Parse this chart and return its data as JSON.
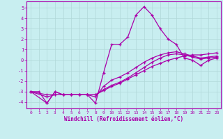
{
  "xlabel": "Windchill (Refroidissement éolien,°C)",
  "background_color": "#c8eef0",
  "grid_color": "#b0d8d8",
  "line_color": "#aa00aa",
  "xlim": [
    -0.5,
    23.5
  ],
  "ylim": [
    -4.6,
    5.6
  ],
  "xticks": [
    0,
    1,
    2,
    3,
    4,
    5,
    6,
    7,
    8,
    9,
    10,
    11,
    12,
    13,
    14,
    15,
    16,
    17,
    18,
    19,
    20,
    21,
    22,
    23
  ],
  "yticks": [
    -4,
    -3,
    -2,
    -1,
    0,
    1,
    2,
    3,
    4,
    5
  ],
  "line1_x": [
    0,
    1,
    2,
    3,
    4,
    5,
    6,
    7,
    8,
    9,
    10,
    11,
    12,
    13,
    14,
    15,
    16,
    17,
    18,
    19,
    20,
    21,
    22,
    23
  ],
  "line1_y": [
    -3.0,
    -3.0,
    -4.1,
    -3.0,
    -3.3,
    -3.3,
    -3.3,
    -3.3,
    -4.1,
    -1.2,
    1.5,
    1.5,
    2.2,
    4.3,
    5.1,
    4.3,
    3.0,
    2.0,
    1.5,
    0.2,
    0.0,
    -0.5,
    0.0,
    0.2
  ],
  "line2_x": [
    0,
    2,
    3,
    4,
    5,
    6,
    7,
    8,
    9,
    10,
    11,
    12,
    13,
    14,
    15,
    16,
    17,
    18,
    19,
    20,
    21,
    22,
    23
  ],
  "line2_y": [
    -3.0,
    -4.1,
    -3.0,
    -3.3,
    -3.3,
    -3.3,
    -3.3,
    -3.3,
    -2.8,
    -2.4,
    -2.1,
    -1.7,
    -1.2,
    -0.7,
    -0.2,
    0.2,
    0.5,
    0.6,
    0.5,
    0.3,
    0.1,
    0.2,
    0.3
  ],
  "line3_x": [
    0,
    2,
    3,
    4,
    5,
    6,
    7,
    8,
    9,
    10,
    11,
    12,
    13,
    14,
    15,
    16,
    17,
    18,
    19,
    20,
    21,
    22,
    23
  ],
  "line3_y": [
    -3.0,
    -3.3,
    -3.3,
    -3.3,
    -3.3,
    -3.3,
    -3.3,
    -3.3,
    -2.9,
    -2.5,
    -2.2,
    -1.8,
    -1.4,
    -1.0,
    -0.6,
    -0.3,
    0.0,
    0.2,
    0.4,
    0.5,
    0.5,
    0.6,
    0.7
  ],
  "line4_x": [
    0,
    2,
    3,
    4,
    5,
    6,
    7,
    8,
    9,
    10,
    11,
    12,
    13,
    14,
    15,
    16,
    17,
    18,
    19,
    20,
    21,
    22,
    23
  ],
  "line4_y": [
    -3.0,
    -3.5,
    -3.3,
    -3.3,
    -3.3,
    -3.3,
    -3.3,
    -3.5,
    -2.5,
    -1.9,
    -1.6,
    -1.2,
    -0.7,
    -0.2,
    0.2,
    0.5,
    0.7,
    0.8,
    0.6,
    0.4,
    0.2,
    0.3,
    0.4
  ]
}
